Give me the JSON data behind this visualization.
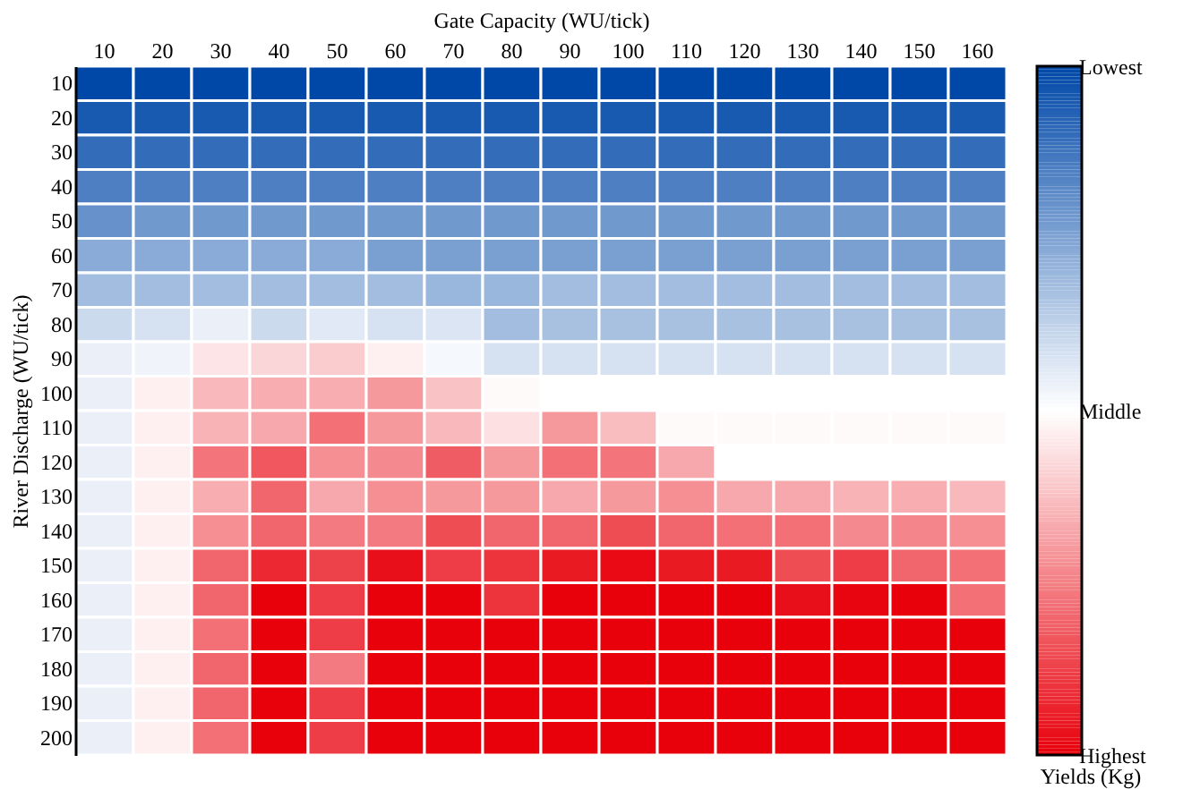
{
  "chart_data": {
    "type": "heatmap",
    "xlabel": "Gate Capacity (WU/tick)",
    "ylabel": "River Discharge (WU/tick)",
    "clabel": "Yields (Kg)",
    "categories": [
      "10",
      "20",
      "30",
      "40",
      "50",
      "60",
      "70",
      "80",
      "90",
      "100",
      "110",
      "120",
      "130",
      "140",
      "150",
      "160"
    ],
    "y_categories": [
      "10",
      "20",
      "30",
      "40",
      "50",
      "60",
      "70",
      "80",
      "90",
      "100",
      "110",
      "120",
      "130",
      "140",
      "150",
      "160",
      "170",
      "180",
      "190",
      "200"
    ],
    "clim": [
      0,
      1
    ],
    "cticks": [
      {
        "value": 0,
        "label": "Lowest"
      },
      {
        "value": 0.5,
        "label": "Middle"
      },
      {
        "value": 1,
        "label": "Highest"
      }
    ],
    "colors": [
      "#0048a8",
      "#ffffff",
      "#e8000b"
    ],
    "cells": [
      [
        0,
        0,
        0,
        0,
        0,
        0,
        0,
        0,
        0,
        0,
        0,
        0,
        0,
        0,
        0,
        0
      ],
      [
        0.05,
        0.05,
        0.05,
        0.05,
        0.05,
        0.05,
        0.05,
        0.05,
        0.05,
        0.05,
        0.05,
        0.05,
        0.05,
        0.05,
        0.05,
        0.05
      ],
      [
        0.1,
        0.1,
        0.1,
        0.1,
        0.1,
        0.1,
        0.1,
        0.1,
        0.1,
        0.1,
        0.1,
        0.1,
        0.1,
        0.1,
        0.1,
        0.1
      ],
      [
        0.15,
        0.15,
        0.15,
        0.15,
        0.15,
        0.15,
        0.15,
        0.15,
        0.15,
        0.15,
        0.15,
        0.15,
        0.15,
        0.15,
        0.15,
        0.15
      ],
      [
        0.2,
        0.22,
        0.22,
        0.22,
        0.22,
        0.22,
        0.22,
        0.22,
        0.22,
        0.22,
        0.22,
        0.22,
        0.22,
        0.22,
        0.22,
        0.22
      ],
      [
        0.27,
        0.27,
        0.27,
        0.27,
        0.27,
        0.24,
        0.24,
        0.24,
        0.24,
        0.24,
        0.24,
        0.24,
        0.24,
        0.24,
        0.24,
        0.24
      ],
      [
        0.32,
        0.32,
        0.32,
        0.32,
        0.32,
        0.32,
        0.3,
        0.3,
        0.32,
        0.32,
        0.32,
        0.32,
        0.32,
        0.32,
        0.32,
        0.32
      ],
      [
        0.4,
        0.42,
        0.46,
        0.4,
        0.44,
        0.42,
        0.43,
        0.32,
        0.33,
        0.33,
        0.33,
        0.33,
        0.33,
        0.33,
        0.33,
        0.33
      ],
      [
        0.46,
        0.47,
        0.55,
        0.58,
        0.6,
        0.53,
        0.48,
        0.42,
        0.42,
        0.42,
        0.42,
        0.42,
        0.42,
        0.42,
        0.42,
        0.42
      ],
      [
        0.46,
        0.53,
        0.64,
        0.66,
        0.66,
        0.7,
        0.62,
        0.51,
        0.5,
        0.5,
        0.5,
        0.5,
        0.5,
        0.5,
        0.5,
        0.5
      ],
      [
        0.46,
        0.53,
        0.65,
        0.67,
        0.78,
        0.7,
        0.64,
        0.56,
        0.7,
        0.63,
        0.51,
        0.51,
        0.51,
        0.51,
        0.51,
        0.51
      ],
      [
        0.46,
        0.53,
        0.77,
        0.83,
        0.72,
        0.73,
        0.82,
        0.7,
        0.78,
        0.77,
        0.67,
        0.5,
        0.5,
        0.5,
        0.5,
        0.5
      ],
      [
        0.46,
        0.53,
        0.66,
        0.8,
        0.67,
        0.72,
        0.7,
        0.7,
        0.67,
        0.7,
        0.72,
        0.67,
        0.67,
        0.65,
        0.66,
        0.64
      ],
      [
        0.46,
        0.53,
        0.72,
        0.8,
        0.76,
        0.76,
        0.85,
        0.8,
        0.8,
        0.85,
        0.8,
        0.78,
        0.78,
        0.73,
        0.74,
        0.72
      ],
      [
        0.46,
        0.53,
        0.8,
        0.92,
        0.87,
        0.97,
        0.88,
        0.9,
        0.95,
        0.98,
        0.95,
        0.95,
        0.85,
        0.88,
        0.8,
        0.78
      ],
      [
        0.46,
        0.53,
        0.8,
        1,
        0.88,
        1,
        1,
        0.9,
        1,
        1,
        1,
        1,
        0.97,
        0.99,
        1,
        0.78
      ],
      [
        0.46,
        0.53,
        0.78,
        1,
        0.88,
        1,
        1,
        1,
        1,
        1,
        1,
        1,
        1,
        1,
        1,
        1
      ],
      [
        0.46,
        0.53,
        0.8,
        1,
        0.76,
        1,
        1,
        1,
        1,
        1,
        1,
        1,
        1,
        1,
        1,
        1
      ],
      [
        0.46,
        0.53,
        0.8,
        1,
        0.88,
        1,
        1,
        1,
        1,
        1,
        1,
        1,
        1,
        1,
        1,
        1
      ],
      [
        0.46,
        0.53,
        0.78,
        1,
        0.88,
        1,
        1,
        1,
        1,
        1,
        1,
        1,
        1,
        1,
        1,
        1
      ]
    ]
  }
}
